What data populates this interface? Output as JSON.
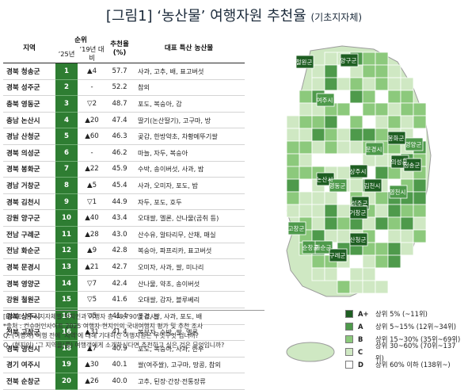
{
  "title": {
    "main": "[그림1] ‘농산물’ 여행자원 추천율",
    "sub": "(기초지자체)"
  },
  "table": {
    "headers": {
      "region": "지역",
      "rank_group": "순위",
      "rank_25": "’25년",
      "rank_change": "’19년 대비",
      "score": "추천율 (%)",
      "product": "대표 특산 농산물"
    },
    "rows": [
      {
        "region": "경북 청송군",
        "rank": "1",
        "change": "▲4",
        "score": "57.7",
        "product": "사과, 고추, 배, 표고버섯"
      },
      {
        "region": "경북 성주군",
        "rank": "2",
        "change": "-",
        "score": "52.2",
        "product": "참외"
      },
      {
        "region": "충북 영동군",
        "rank": "3",
        "change": "▽2",
        "score": "48.7",
        "product": "포도, 복숭아, 감"
      },
      {
        "region": "충남 논산시",
        "rank": "4",
        "change": "▲20",
        "score": "47.4",
        "product": "딸기(논산딸기), 고구마, 방"
      },
      {
        "region": "경남 산청군",
        "rank": "5",
        "change": "▲60",
        "score": "46.3",
        "product": "곶감, 한방약초, 차황메뚜기쌀"
      },
      {
        "region": "경북 의성군",
        "rank": "6",
        "change": "-",
        "score": "46.2",
        "product": "마늘, 자두, 복숭아"
      },
      {
        "region": "경북 봉화군",
        "rank": "7",
        "change": "▲22",
        "score": "45.9",
        "product": "수박, 송이버섯, 사과, 밤"
      },
      {
        "region": "경남 거창군",
        "rank": "8",
        "change": "▲5",
        "score": "45.4",
        "product": "사과, 오미자, 포도, 밤"
      },
      {
        "region": "경북 김천시",
        "rank": "9",
        "change": "▽1",
        "score": "44.9",
        "product": "자두, 포도, 호두"
      },
      {
        "region": "강원 양구군",
        "rank": "10",
        "change": "▲40",
        "score": "43.4",
        "product": "오대쌀, 멜론, 산나물(곰취 등)"
      },
      {
        "region": "전남 구례군",
        "rank": "11",
        "change": "▲28",
        "score": "43.0",
        "product": "산수유, 알타리무, 산채, 매실"
      },
      {
        "region": "전남 화순군",
        "rank": "12",
        "change": "▲9",
        "score": "42.8",
        "product": "복숭아, 파프리카, 표고버섯"
      },
      {
        "region": "경북 문경시",
        "rank": "13",
        "change": "▲21",
        "score": "42.7",
        "product": "오미자, 사과, 쌀, 미나리"
      },
      {
        "region": "경북 영양군",
        "rank": "14",
        "change": "▽7",
        "score": "42.4",
        "product": "산나물, 약초, 송이버섯"
      },
      {
        "region": "강원 철원군",
        "rank": "15",
        "change": "▽5",
        "score": "41.6",
        "product": "오대쌀, 감자, 블루베리"
      },
      {
        "region": "경북 상주시",
        "rank": "16",
        "change": "▽5",
        "score": "41.4",
        "product": "곶감, 쌀, 사과, 포도, 배"
      },
      {
        "region": "전북 고창군",
        "rank": "16",
        "change": "▲31",
        "score": "41.4",
        "product": "복분자, 수박, 쌀, 멜론"
      },
      {
        "region": "경북 영천시",
        "rank": "18",
        "change": "▲7",
        "score": "40.9",
        "product": "포도, 복숭아, 사과, 한우"
      },
      {
        "region": "경기 여주시",
        "rank": "19",
        "change": "▲30",
        "score": "40.1",
        "product": "쌀(여주쌀), 고구마, 땅콩, 참외"
      },
      {
        "region": "전북 순창군",
        "rank": "20",
        "change": "▲26",
        "score": "40.0",
        "product": "고추, 된장·간장·전통장류"
      }
    ]
  },
  "notes": {
    "base": "[BASE: 전국 지자체별 현지인과 여행자 총 48,790명 조사]",
    "source": "*출처 : 컨슈머인사이트 2025 여행자·현지인의 국내여행지 평가 및 추천 조사",
    "q1": "Q. (여행자) 여행 전에 ‘지역’에 대해 기대하신 여행자원은 무엇무엇 입니까?",
    "q2": "Q. (현지인) ‘그 지역을(를) 여행객에게 소개하신다면 추천하고 싶은 것은 무엇입니까?"
  },
  "map": {
    "labels": [
      "철원군",
      "양구군",
      "여주시",
      "봉화군",
      "영양군",
      "문경시",
      "의성군",
      "청송군",
      "논산시",
      "상주시",
      "영동군",
      "김천시",
      "성주군",
      "영천시",
      "거창군",
      "고창군",
      "순창군",
      "산청군",
      "화순군",
      "구례군"
    ]
  },
  "legend": [
    {
      "grade": "A+",
      "label": "상위 5% (~11위)",
      "color": "#1e5e22"
    },
    {
      "grade": "A",
      "label": "상위 5~15% (12위~34위)",
      "color": "#4e9a4b"
    },
    {
      "grade": "B",
      "label": "상위 15~30% (35위~69위)",
      "color": "#8cc97c"
    },
    {
      "grade": "C",
      "label": "상위 30~60% (70위~137위)",
      "color": "#cfe8c3"
    },
    {
      "grade": "D",
      "label": "상위 60% 이하 (138위~)",
      "color": "#ffffff"
    }
  ]
}
